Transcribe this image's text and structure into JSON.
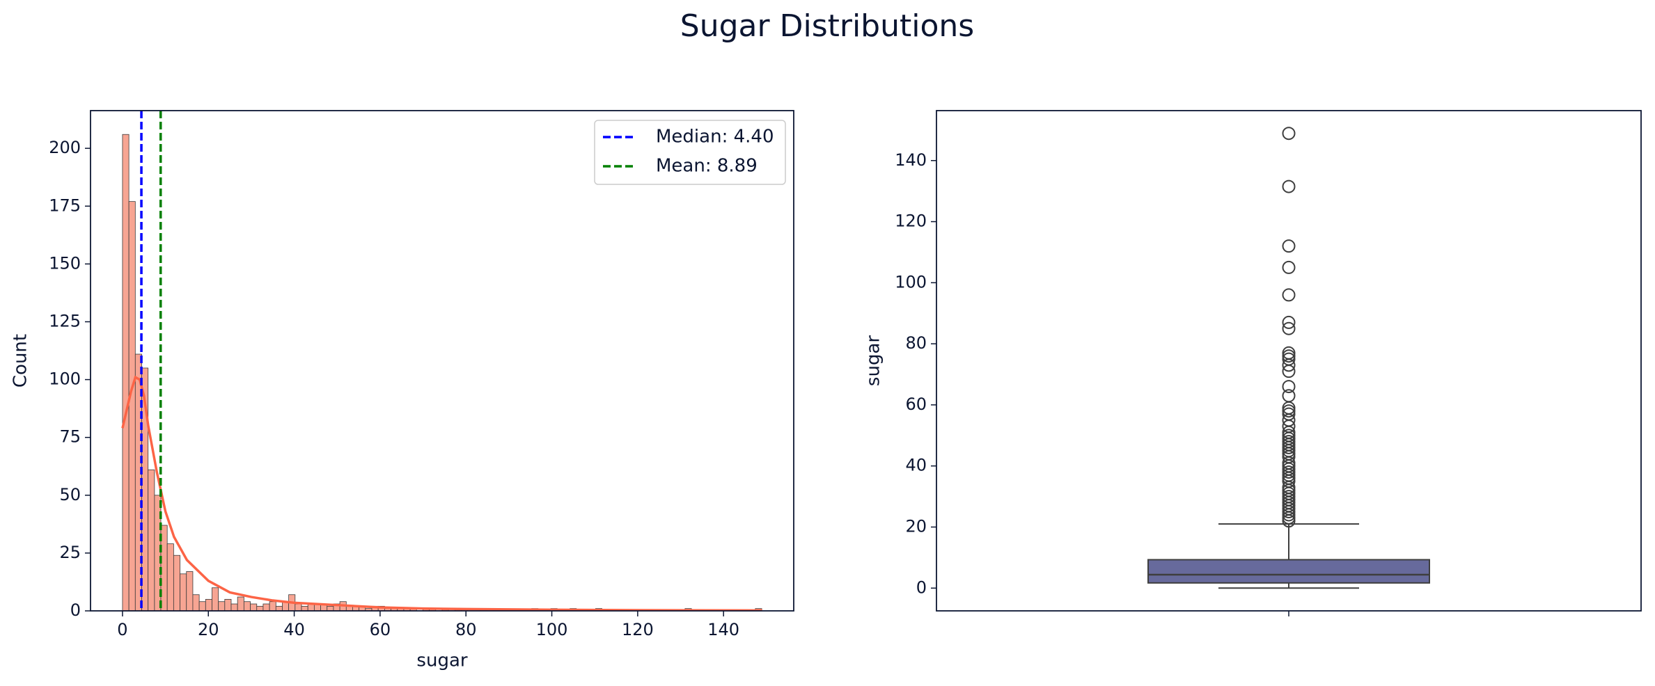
{
  "title": "Sugar Distributions",
  "chart_data": [
    {
      "type": "histogram",
      "xlabel": "sugar",
      "ylabel": "Count",
      "bins": [
        0,
        1.49,
        2.98,
        4.47,
        5.96,
        7.45,
        8.93,
        10.42,
        11.91,
        13.4,
        14.89,
        16.38,
        17.87,
        19.36,
        20.85,
        22.34,
        23.82,
        25.31,
        26.8,
        28.29,
        29.78,
        31.27,
        32.76,
        34.25,
        35.74,
        37.23,
        38.71,
        40.2,
        41.69,
        43.18,
        44.67,
        46.16,
        47.65,
        49.14,
        50.63,
        52.12,
        53.6,
        55.09,
        56.58,
        58.07,
        59.56,
        61.05,
        62.54,
        64.03,
        65.52,
        67.01,
        68.49,
        69.98,
        71.47,
        72.96,
        74.45,
        75.94,
        77.43,
        78.92,
        80.41,
        81.9,
        83.38,
        84.87,
        86.36,
        87.85,
        89.34,
        90.83,
        92.32,
        93.81,
        95.3,
        96.79,
        98.27,
        99.76,
        101.25,
        102.74,
        104.23,
        105.72,
        107.21,
        108.7,
        110.19,
        111.68,
        113.16,
        114.65,
        116.14,
        117.63,
        119.12,
        120.61,
        122.1,
        123.59,
        125.08,
        126.57,
        128.05,
        129.54,
        131.03,
        132.52,
        134.01,
        135.5,
        136.99,
        138.48,
        139.97,
        141.46,
        142.94,
        144.43,
        145.92,
        147.41,
        148.9
      ],
      "counts": [
        206,
        177,
        111,
        105,
        61,
        50,
        37,
        29,
        24,
        16,
        17,
        7,
        4,
        5,
        10,
        4,
        5,
        3,
        6,
        4,
        3,
        2,
        3,
        4,
        2,
        4,
        7,
        3,
        2,
        3,
        3,
        3,
        2,
        3,
        4,
        2,
        2,
        2,
        1,
        2,
        2,
        1,
        1,
        1,
        1,
        1,
        0,
        1,
        1,
        0,
        1,
        0,
        1,
        1,
        0,
        0,
        1,
        0,
        1,
        0,
        0,
        0,
        0,
        0,
        1,
        0,
        0,
        1,
        0,
        0,
        1,
        0,
        0,
        0,
        1,
        0,
        0,
        0,
        0,
        0,
        0,
        0,
        0,
        0,
        0,
        0,
        0,
        0,
        1,
        0,
        0,
        0,
        0,
        0,
        0,
        0,
        0,
        0,
        0,
        1
      ],
      "color": "#f7a593",
      "kde": {
        "color": "#fc6446",
        "x": [
          0,
          2,
          3,
          4,
          5,
          6,
          8,
          10,
          12,
          15,
          20,
          25,
          30,
          35,
          40,
          50,
          60,
          70,
          80,
          100,
          120,
          149
        ],
        "values": [
          79,
          95,
          101,
          100,
          93,
          80,
          60,
          43,
          32,
          22,
          13,
          8,
          6,
          4.5,
          3.5,
          2.5,
          1.5,
          1,
          0.8,
          0.5,
          0.3,
          0.2
        ]
      },
      "vlines": [
        {
          "name": "Median: 4.40",
          "value": 4.4,
          "color": "#0000ff"
        },
        {
          "name": "Mean: 8.89",
          "value": 8.89,
          "color": "#008000"
        }
      ],
      "legend": "upper right",
      "xlim": [
        -7.45,
        156.35
      ],
      "xticks": [
        0,
        20,
        40,
        60,
        80,
        100,
        120,
        140
      ],
      "ylim": [
        0,
        216.3
      ],
      "yticks": [
        0,
        25,
        50,
        75,
        100,
        125,
        150,
        175,
        200
      ]
    },
    {
      "type": "box",
      "ylabel": "sugar",
      "color": "#676a9c",
      "box": {
        "whislo": 0,
        "q1": 1.7,
        "med": 4.4,
        "q3": 9.3,
        "whishi": 21,
        "fliers": [
          148.9,
          131.5,
          112,
          105,
          96,
          87,
          85,
          77,
          76,
          75,
          73,
          71,
          66,
          63,
          59,
          58,
          57,
          55,
          53,
          51,
          50,
          49,
          48,
          47,
          46,
          45,
          44,
          43,
          41,
          40,
          39,
          38,
          37,
          36,
          35,
          33,
          32,
          31,
          30,
          29,
          28,
          27,
          26,
          25,
          24,
          23,
          22
        ]
      },
      "ylim": [
        -7.45,
        156.35
      ],
      "yticks": [
        0,
        20,
        40,
        60,
        80,
        100,
        120,
        140
      ]
    }
  ]
}
